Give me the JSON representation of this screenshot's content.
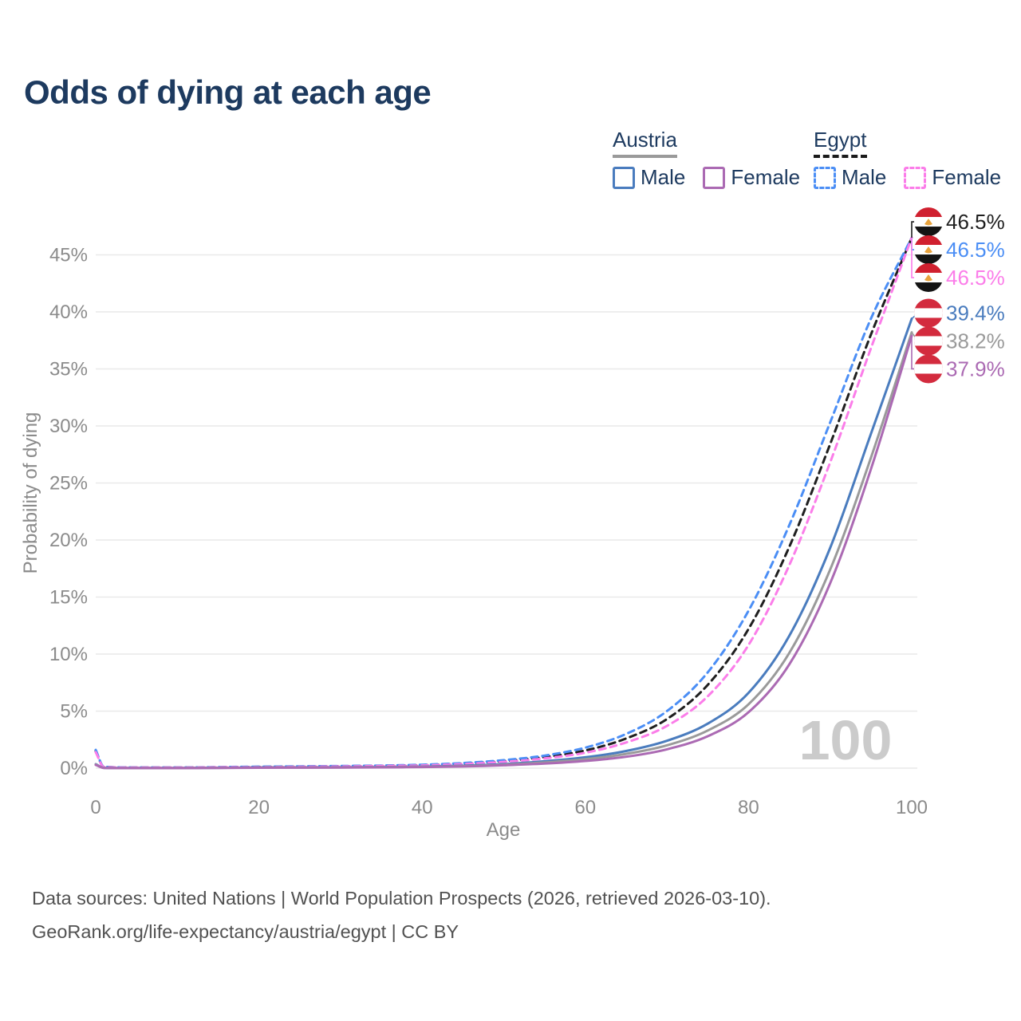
{
  "title": "Odds of dying at each age",
  "legend": {
    "groups": [
      {
        "name": "Austria",
        "underline_style": "solid",
        "underline_color": "#9a9a9a",
        "items": [
          {
            "label": "Male",
            "color": "#4a7cbe",
            "style": "solid"
          },
          {
            "label": "Female",
            "color": "#ab6ab3",
            "style": "solid"
          }
        ]
      },
      {
        "name": "Egypt",
        "underline_style": "dashed",
        "underline_color": "#1a1a1a",
        "items": [
          {
            "label": "Male",
            "color": "#4b8ef5",
            "style": "dashed"
          },
          {
            "label": "Female",
            "color": "#fb7de9",
            "style": "dashed"
          }
        ]
      }
    ]
  },
  "chart_data": {
    "type": "line",
    "title": "Odds of dying at each age",
    "xlabel": "Age",
    "ylabel": "Probability of dying",
    "xlim": [
      0,
      100
    ],
    "ylim": [
      0,
      47
    ],
    "grid": "horizontal",
    "legend_position": "top-right",
    "watermark": "100",
    "x_ticks": [
      {
        "value": 0,
        "label": "0"
      },
      {
        "value": 20,
        "label": "20"
      },
      {
        "value": 40,
        "label": "40"
      },
      {
        "value": 60,
        "label": "60"
      },
      {
        "value": 80,
        "label": "80"
      },
      {
        "value": 100,
        "label": "100"
      }
    ],
    "y_ticks": [
      {
        "value": 0,
        "label": "0%"
      },
      {
        "value": 5,
        "label": "5%"
      },
      {
        "value": 10,
        "label": "10%"
      },
      {
        "value": 15,
        "label": "15%"
      },
      {
        "value": 20,
        "label": "20%"
      },
      {
        "value": 25,
        "label": "25%"
      },
      {
        "value": 30,
        "label": "30%"
      },
      {
        "value": 35,
        "label": "35%"
      },
      {
        "value": 40,
        "label": "40%"
      },
      {
        "value": 45,
        "label": "45%"
      }
    ],
    "ages": [
      0,
      1,
      5,
      10,
      15,
      20,
      25,
      30,
      35,
      40,
      45,
      50,
      55,
      60,
      65,
      70,
      75,
      80,
      85,
      90,
      95,
      100
    ],
    "series": [
      {
        "name": "Egypt Average",
        "country": "egypt",
        "sex": "average",
        "color": "#1f1f1f",
        "dash": true,
        "end_label": "46.5%",
        "values": [
          1.5,
          0.11,
          0.055,
          0.055,
          0.08,
          0.11,
          0.14,
          0.17,
          0.21,
          0.27,
          0.4,
          0.62,
          0.97,
          1.55,
          2.6,
          4.3,
          7.3,
          12.2,
          19.4,
          28.4,
          38.0,
          46.5
        ]
      },
      {
        "name": "Egypt Male",
        "country": "egypt",
        "sex": "male",
        "color": "#4b8ef5",
        "dash": true,
        "end_label": "46.5%",
        "values": [
          1.6,
          0.12,
          0.06,
          0.06,
          0.09,
          0.13,
          0.16,
          0.19,
          0.23,
          0.3,
          0.45,
          0.7,
          1.1,
          1.8,
          3.0,
          5.0,
          8.4,
          13.8,
          21.3,
          30.3,
          39.4,
          46.5
        ]
      },
      {
        "name": "Egypt Female",
        "country": "egypt",
        "sex": "female",
        "color": "#fb7de9",
        "dash": true,
        "end_label": "46.5%",
        "values": [
          1.4,
          0.1,
          0.05,
          0.05,
          0.07,
          0.09,
          0.12,
          0.15,
          0.19,
          0.24,
          0.36,
          0.55,
          0.85,
          1.35,
          2.25,
          3.7,
          6.3,
          10.8,
          17.8,
          26.8,
          36.8,
          46.5
        ]
      },
      {
        "name": "Austria Male",
        "country": "austria",
        "sex": "male",
        "color": "#4a7cbe",
        "dash": false,
        "end_label": "39.4%",
        "values": [
          0.35,
          0.03,
          0.01,
          0.01,
          0.03,
          0.06,
          0.07,
          0.08,
          0.1,
          0.14,
          0.22,
          0.36,
          0.6,
          0.95,
          1.5,
          2.4,
          3.9,
          6.6,
          11.6,
          19.3,
          29.3,
          39.4
        ]
      },
      {
        "name": "Austria Average",
        "country": "austria",
        "sex": "average",
        "color": "#9a9a9a",
        "dash": false,
        "end_label": "38.2%",
        "values": [
          0.32,
          0.025,
          0.01,
          0.01,
          0.025,
          0.045,
          0.055,
          0.065,
          0.085,
          0.12,
          0.18,
          0.3,
          0.5,
          0.78,
          1.25,
          2.0,
          3.3,
          5.6,
          10.1,
          17.4,
          27.2,
          38.2
        ]
      },
      {
        "name": "Austria Female",
        "country": "austria",
        "sex": "female",
        "color": "#ab6ab3",
        "dash": false,
        "end_label": "37.9%",
        "values": [
          0.28,
          0.02,
          0.01,
          0.01,
          0.02,
          0.035,
          0.045,
          0.055,
          0.07,
          0.1,
          0.15,
          0.25,
          0.4,
          0.63,
          1.0,
          1.65,
          2.8,
          4.9,
          9.1,
          16.2,
          26.2,
          37.9
        ]
      }
    ],
    "flag_colors": {
      "egypt_red": "#d0202f",
      "egypt_black": "#141414",
      "egypt_gold": "#e8a33d",
      "austria_red": "#d32b3e",
      "white": "#ffffff"
    }
  },
  "colors": {
    "title_text": "#1d3a5f",
    "axis_text": "#8b8b8b",
    "gridline": "#e9e9e9",
    "watermark": "#cbcbcb",
    "footer_text": "#515151"
  },
  "footer": {
    "line1": "Data sources: United Nations | World Population Prospects (2026, retrieved 2026-03-10).",
    "line2": "GeoRank.org/life-expectancy/austria/egypt | CC BY"
  }
}
